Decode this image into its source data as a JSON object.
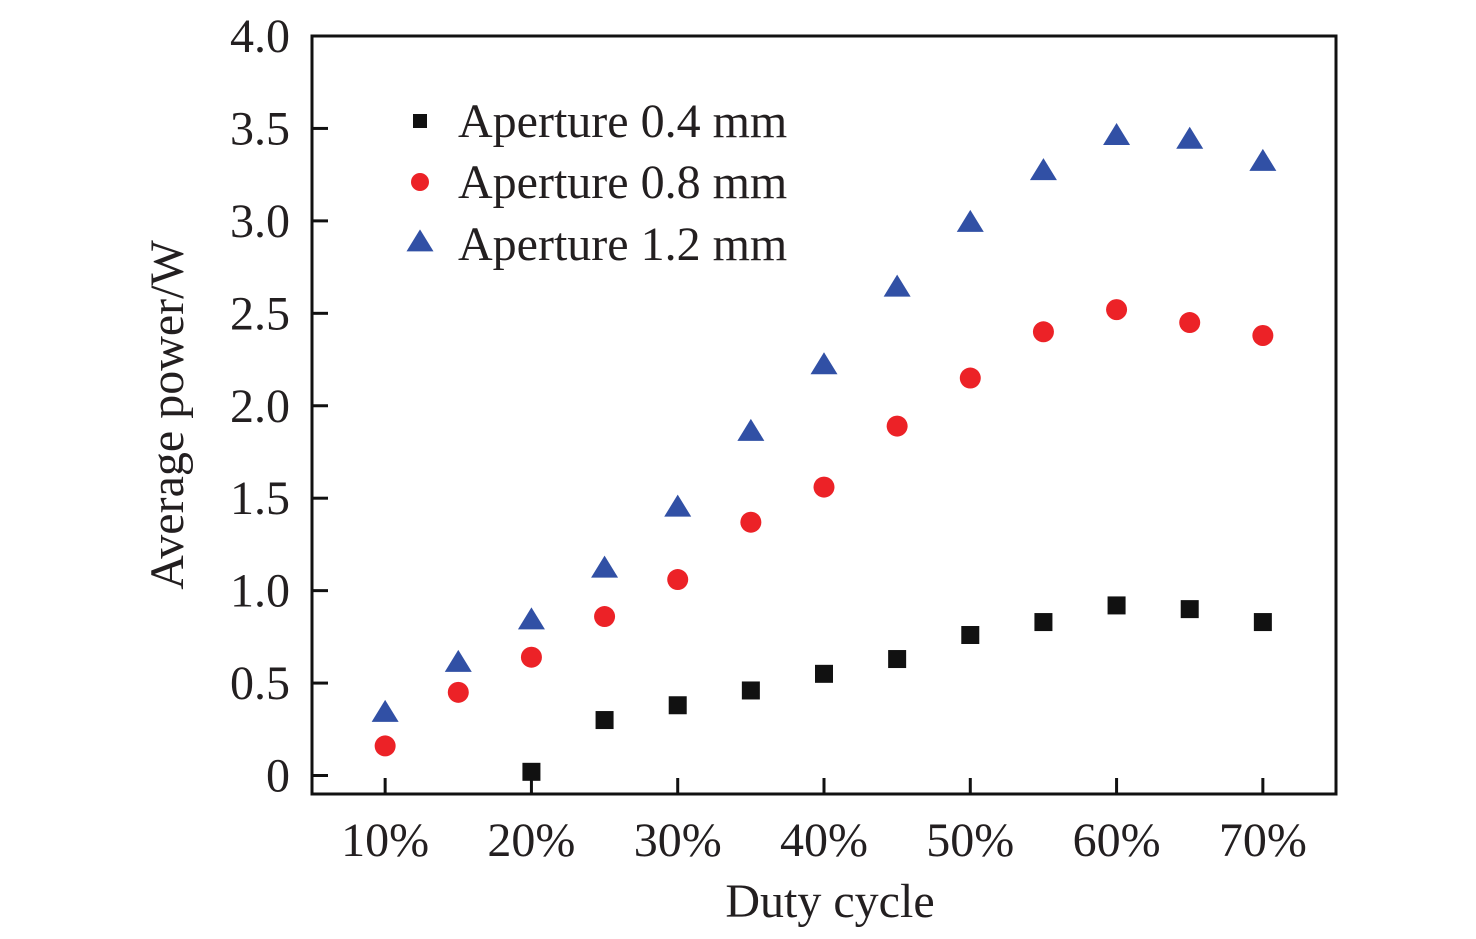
{
  "chart_data": {
    "type": "scatter",
    "title": "",
    "xlabel": "Duty cycle",
    "ylabel": "Average power/W",
    "x": [
      10,
      15,
      20,
      25,
      30,
      35,
      40,
      45,
      50,
      55,
      60,
      65,
      70
    ],
    "x_unit": "%",
    "xlim": [
      5,
      75
    ],
    "ylim": [
      -0.1,
      4.0
    ],
    "x_ticks": [
      10,
      20,
      30,
      40,
      50,
      60,
      70
    ],
    "x_tick_labels": [
      "10%",
      "20%",
      "30%",
      "40%",
      "50%",
      "60%",
      "70%"
    ],
    "y_ticks": [
      0,
      0.5,
      1.0,
      1.5,
      2.0,
      2.5,
      3.0,
      3.5,
      4.0
    ],
    "y_tick_labels": [
      "0",
      "0.5",
      "1.0",
      "1.5",
      "2.0",
      "2.5",
      "3.0",
      "3.5",
      "4.0"
    ],
    "grid": false,
    "legend_position": "top-left",
    "series": [
      {
        "name": "Aperture 0.4 mm",
        "marker": "square",
        "color": "#111111",
        "points": [
          {
            "x": 20,
            "y": 0.02
          },
          {
            "x": 25,
            "y": 0.3
          },
          {
            "x": 30,
            "y": 0.38
          },
          {
            "x": 35,
            "y": 0.46
          },
          {
            "x": 40,
            "y": 0.55
          },
          {
            "x": 45,
            "y": 0.63
          },
          {
            "x": 50,
            "y": 0.76
          },
          {
            "x": 55,
            "y": 0.83
          },
          {
            "x": 60,
            "y": 0.92
          },
          {
            "x": 65,
            "y": 0.9
          },
          {
            "x": 70,
            "y": 0.83
          }
        ]
      },
      {
        "name": "Aperture 0.8 mm",
        "marker": "circle",
        "color": "#ec2227",
        "points": [
          {
            "x": 10,
            "y": 0.16
          },
          {
            "x": 15,
            "y": 0.45
          },
          {
            "x": 20,
            "y": 0.64
          },
          {
            "x": 25,
            "y": 0.86
          },
          {
            "x": 30,
            "y": 1.06
          },
          {
            "x": 35,
            "y": 1.37
          },
          {
            "x": 40,
            "y": 1.56
          },
          {
            "x": 45,
            "y": 1.89
          },
          {
            "x": 50,
            "y": 2.15
          },
          {
            "x": 55,
            "y": 2.4
          },
          {
            "x": 60,
            "y": 2.52
          },
          {
            "x": 65,
            "y": 2.45
          },
          {
            "x": 70,
            "y": 2.38
          }
        ]
      },
      {
        "name": "Aperture 1.2 mm",
        "marker": "triangle",
        "color": "#3150a5",
        "points": [
          {
            "x": 10,
            "y": 0.33
          },
          {
            "x": 15,
            "y": 0.6
          },
          {
            "x": 20,
            "y": 0.83
          },
          {
            "x": 25,
            "y": 1.11
          },
          {
            "x": 30,
            "y": 1.44
          },
          {
            "x": 35,
            "y": 1.85
          },
          {
            "x": 40,
            "y": 2.21
          },
          {
            "x": 45,
            "y": 2.63
          },
          {
            "x": 50,
            "y": 2.98
          },
          {
            "x": 55,
            "y": 3.26
          },
          {
            "x": 60,
            "y": 3.45
          },
          {
            "x": 65,
            "y": 3.43
          },
          {
            "x": 70,
            "y": 3.31
          }
        ]
      }
    ]
  }
}
